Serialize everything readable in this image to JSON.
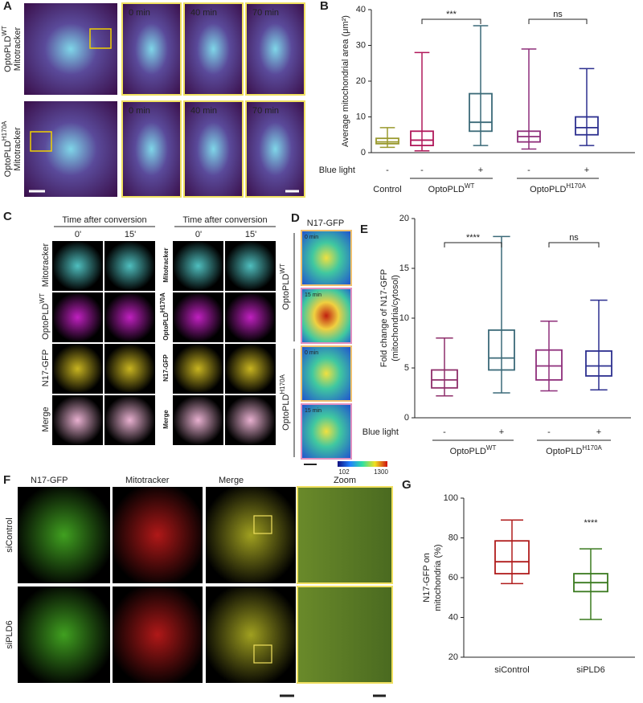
{
  "panels": {
    "A": {
      "letter": "A",
      "rows": [
        {
          "base": "OptoPLD",
          "sup": "WT",
          "stain": "Mitotracker"
        },
        {
          "base": "OptoPLD",
          "sup": "H170A",
          "stain": "Mitotracker"
        }
      ],
      "times": [
        "0 min",
        "40 min",
        "70 min"
      ]
    },
    "B": {
      "letter": "B",
      "ylabel": "Average mitochondrial area (μm²)",
      "ylim": [
        0,
        40
      ],
      "yticks": [
        0,
        10,
        20,
        30,
        40
      ],
      "blue_light_label": "Blue light",
      "boxes": [
        {
          "color": "#9a9a2f",
          "light": "-",
          "min": 1.5,
          "q1": 2.5,
          "median": 3,
          "q3": 4,
          "max": 7
        },
        {
          "color": "#b0185a",
          "light": "-",
          "min": 0.5,
          "q1": 2,
          "median": 3.5,
          "q3": 6,
          "max": 28
        },
        {
          "color": "#3b6a78",
          "light": "+",
          "min": 2,
          "q1": 6,
          "median": 8.5,
          "q3": 16.5,
          "max": 35.5
        },
        {
          "color": "#8e2e7a",
          "light": "-",
          "min": 1,
          "q1": 3,
          "median": 4.5,
          "q3": 6,
          "max": 29
        },
        {
          "color": "#2c2f8f",
          "light": "+",
          "min": 2,
          "q1": 5,
          "median": 7,
          "q3": 10,
          "max": 23.5
        }
      ],
      "groups": [
        {
          "base": "Control"
        },
        {
          "base": "OptoPLD",
          "sup": "WT"
        },
        {
          "base": "OptoPLD",
          "sup": "H170A"
        }
      ],
      "annotations": [
        "***",
        "ns"
      ]
    },
    "C": {
      "letter": "C",
      "header": "Time after conversion",
      "times": [
        "0'",
        "15'"
      ],
      "left_rows": [
        "Mitotracker",
        {
          "base": "OptoPLD",
          "sup": "WT"
        },
        "N17-GFP",
        "Merge"
      ],
      "right_rows": [
        "Mitotracker",
        {
          "base": "OptoPLD",
          "sup": "H170A"
        },
        "N17-GFP",
        "Merge"
      ]
    },
    "D": {
      "letter": "D",
      "header": "N17-GFP",
      "times": [
        "0 min",
        "15 min"
      ],
      "groups": [
        {
          "base": "OptoPLD",
          "sup": "WT"
        },
        {
          "base": "OptoPLD",
          "sup": "H170A"
        }
      ],
      "colorbar": [
        "102",
        "1300"
      ]
    },
    "E": {
      "letter": "E",
      "ylabel": "Fold change of N17-GFP",
      "ylabel2": "(mitochondria/cytosol)",
      "ylim": [
        0,
        20
      ],
      "yticks": [
        0,
        5,
        10,
        15,
        20
      ],
      "blue_light_label": "Blue light",
      "boxes": [
        {
          "color": "#8e2e6a",
          "light": "-",
          "min": 2.2,
          "q1": 3,
          "median": 3.8,
          "q3": 4.8,
          "max": 8
        },
        {
          "color": "#3b6a78",
          "light": "+",
          "min": 2.5,
          "q1": 4.8,
          "median": 6,
          "q3": 8.8,
          "max": 18.2
        },
        {
          "color": "#8e2e7a",
          "light": "-",
          "min": 2.7,
          "q1": 3.8,
          "median": 5.2,
          "q3": 6.8,
          "max": 9.7
        },
        {
          "color": "#2c2f8f",
          "light": "+",
          "min": 2.8,
          "q1": 4.2,
          "median": 5.2,
          "q3": 6.7,
          "max": 11.8
        }
      ],
      "groups": [
        {
          "base": "OptoPLD",
          "sup": "WT"
        },
        {
          "base": "OptoPLD",
          "sup": "H170A"
        }
      ],
      "annotations": [
        "****",
        "ns"
      ]
    },
    "F": {
      "letter": "F",
      "columns": [
        "N17-GFP",
        "Mitotracker",
        "Merge",
        "Zoom"
      ],
      "rows": [
        "siControl",
        "siPLD6"
      ]
    },
    "G": {
      "letter": "G",
      "ylabel": "N17-GFP on",
      "ylabel2": "mitochondria (%)",
      "ylim": [
        20,
        100
      ],
      "yticks": [
        20,
        40,
        60,
        80,
        100
      ],
      "boxes": [
        {
          "color": "#b01c1c",
          "label": "siControl",
          "min": 57,
          "q1": 62,
          "median": 68,
          "q3": 78.5,
          "max": 89
        },
        {
          "color": "#3a7a1f",
          "label": "siPLD6",
          "min": 39,
          "q1": 53,
          "median": 57.5,
          "q3": 62,
          "max": 74.5
        }
      ],
      "annotations": [
        "****"
      ]
    }
  }
}
